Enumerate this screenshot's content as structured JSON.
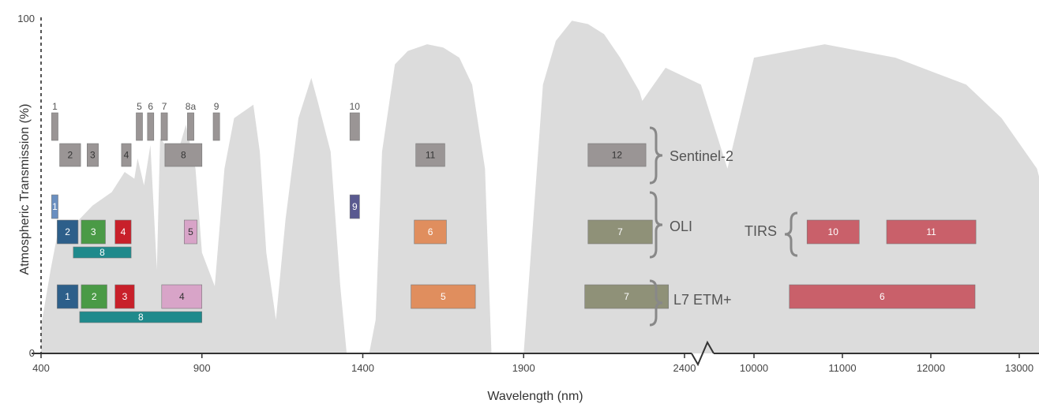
{
  "chart_data": {
    "type": "area",
    "title": "",
    "xlabel": "Wavelength (nm)",
    "ylabel": "Atmospheric Transmission (%)",
    "ylim": [
      0,
      100
    ],
    "y_ticks": [
      "0",
      "100"
    ],
    "x_ticks_nm": [
      "400",
      "900",
      "1400",
      "1900",
      "2400"
    ],
    "x_ticks_thermal": [
      "10000",
      "11000",
      "12000",
      "13000"
    ],
    "axis_break_between": [
      "2400",
      "10000"
    ],
    "colors": {
      "transmission": "#dcdcdc",
      "sentinel2": "#9a9595",
      "blue": "#2d5f8a",
      "green": "#4a9a46",
      "red": "#c8202a",
      "nir": "#d8a4c8",
      "pan": "#1f8a8c",
      "swir1": "#e08e5e",
      "swir2": "#8f9178",
      "cirrus": "#6f6fa0",
      "coastal": "#6a8fc0",
      "tirs": "#c9606a",
      "l8cirrus": "#5a5a90"
    },
    "transmission_series": [
      {
        "x": 400,
        "y": 8
      },
      {
        "x": 430,
        "y": 25
      },
      {
        "x": 450,
        "y": 35
      },
      {
        "x": 500,
        "y": 38
      },
      {
        "x": 560,
        "y": 44
      },
      {
        "x": 620,
        "y": 48
      },
      {
        "x": 660,
        "y": 54
      },
      {
        "x": 690,
        "y": 52
      },
      {
        "x": 700,
        "y": 58
      },
      {
        "x": 720,
        "y": 50
      },
      {
        "x": 740,
        "y": 62
      },
      {
        "x": 760,
        "y": 25
      },
      {
        "x": 770,
        "y": 64
      },
      {
        "x": 820,
        "y": 58
      },
      {
        "x": 850,
        "y": 68
      },
      {
        "x": 880,
        "y": 55
      },
      {
        "x": 900,
        "y": 30
      },
      {
        "x": 940,
        "y": 20
      },
      {
        "x": 970,
        "y": 55
      },
      {
        "x": 1000,
        "y": 70
      },
      {
        "x": 1030,
        "y": 72
      },
      {
        "x": 1060,
        "y": 74
      },
      {
        "x": 1080,
        "y": 60
      },
      {
        "x": 1100,
        "y": 30
      },
      {
        "x": 1130,
        "y": 10
      },
      {
        "x": 1160,
        "y": 40
      },
      {
        "x": 1200,
        "y": 70
      },
      {
        "x": 1240,
        "y": 82
      },
      {
        "x": 1260,
        "y": 75
      },
      {
        "x": 1300,
        "y": 60
      },
      {
        "x": 1330,
        "y": 20
      },
      {
        "x": 1350,
        "y": 0
      },
      {
        "x": 1370,
        "y": 0
      },
      {
        "x": 1400,
        "y": 0
      },
      {
        "x": 1420,
        "y": 0
      },
      {
        "x": 1440,
        "y": 10
      },
      {
        "x": 1460,
        "y": 60
      },
      {
        "x": 1500,
        "y": 86
      },
      {
        "x": 1540,
        "y": 90
      },
      {
        "x": 1600,
        "y": 92
      },
      {
        "x": 1650,
        "y": 91
      },
      {
        "x": 1700,
        "y": 88
      },
      {
        "x": 1740,
        "y": 80
      },
      {
        "x": 1780,
        "y": 55
      },
      {
        "x": 1800,
        "y": 0
      },
      {
        "x": 1860,
        "y": 0
      },
      {
        "x": 1900,
        "y": 0
      },
      {
        "x": 1930,
        "y": 40
      },
      {
        "x": 1960,
        "y": 80
      },
      {
        "x": 2000,
        "y": 93
      },
      {
        "x": 2050,
        "y": 99
      },
      {
        "x": 2100,
        "y": 98
      },
      {
        "x": 2150,
        "y": 95
      },
      {
        "x": 2200,
        "y": 88
      },
      {
        "x": 2260,
        "y": 78
      },
      {
        "x": 2300,
        "y": 65
      },
      {
        "x": 2340,
        "y": 40
      },
      {
        "x": 2380,
        "y": 20
      },
      {
        "x": 2400,
        "y": 0
      }
    ],
    "thermal_series": [
      {
        "x": 7900,
        "y": 0
      },
      {
        "x": 8200,
        "y": 50
      },
      {
        "x": 8600,
        "y": 70
      },
      {
        "x": 9000,
        "y": 85
      },
      {
        "x": 9400,
        "y": 80
      },
      {
        "x": 9700,
        "y": 55
      },
      {
        "x": 10000,
        "y": 88
      },
      {
        "x": 10400,
        "y": 90
      },
      {
        "x": 10800,
        "y": 92
      },
      {
        "x": 11200,
        "y": 90
      },
      {
        "x": 11600,
        "y": 88
      },
      {
        "x": 12000,
        "y": 84
      },
      {
        "x": 12400,
        "y": 80
      },
      {
        "x": 12800,
        "y": 70
      },
      {
        "x": 13200,
        "y": 55
      },
      {
        "x": 13300,
        "y": 45
      }
    ],
    "band_groups": [
      {
        "name": "Sentinel-2",
        "bands": [
          {
            "label": "1",
            "x0": 433,
            "x1": 453,
            "row": "s2-top",
            "color": "sentinel2"
          },
          {
            "label": "2",
            "x0": 458,
            "x1": 523,
            "row": "s2-main",
            "color": "sentinel2"
          },
          {
            "label": "3",
            "x0": 543,
            "x1": 578,
            "row": "s2-main",
            "color": "sentinel2"
          },
          {
            "label": "4",
            "x0": 650,
            "x1": 680,
            "row": "s2-main",
            "color": "sentinel2"
          },
          {
            "label": "5",
            "x0": 698,
            "x1": 713,
            "row": "s2-top",
            "color": "sentinel2"
          },
          {
            "label": "6",
            "x0": 733,
            "x1": 748,
            "row": "s2-top",
            "color": "sentinel2"
          },
          {
            "label": "7",
            "x0": 773,
            "x1": 793,
            "row": "s2-top",
            "color": "sentinel2"
          },
          {
            "label": "8",
            "x0": 785,
            "x1": 900,
            "row": "s2-main",
            "color": "sentinel2"
          },
          {
            "label": "8a",
            "x0": 855,
            "x1": 875,
            "row": "s2-top",
            "color": "sentinel2"
          },
          {
            "label": "9",
            "x0": 935,
            "x1": 955,
            "row": "s2-top",
            "color": "sentinel2"
          },
          {
            "label": "10",
            "x0": 1360,
            "x1": 1390,
            "row": "s2-top",
            "color": "sentinel2"
          },
          {
            "label": "11",
            "x0": 1565,
            "x1": 1655,
            "row": "s2-main",
            "color": "sentinel2"
          },
          {
            "label": "12",
            "x0": 2100,
            "x1": 2280,
            "row": "s2-main",
            "color": "sentinel2"
          }
        ]
      },
      {
        "name": "OLI",
        "bands": [
          {
            "label": "1",
            "x0": 433,
            "x1": 453,
            "row": "oli-top",
            "color": "coastal"
          },
          {
            "label": "2",
            "x0": 450,
            "x1": 515,
            "row": "oli-main",
            "color": "blue"
          },
          {
            "label": "3",
            "x0": 525,
            "x1": 600,
            "row": "oli-main",
            "color": "green"
          },
          {
            "label": "4",
            "x0": 630,
            "x1": 680,
            "row": "oli-main",
            "color": "red"
          },
          {
            "label": "5",
            "x0": 845,
            "x1": 885,
            "row": "oli-main",
            "color": "nir"
          },
          {
            "label": "6",
            "x0": 1560,
            "x1": 1660,
            "row": "oli-main",
            "color": "swir1"
          },
          {
            "label": "7",
            "x0": 2100,
            "x1": 2300,
            "row": "oli-main",
            "color": "swir2"
          },
          {
            "label": "8",
            "x0": 500,
            "x1": 680,
            "row": "oli-pan",
            "color": "pan"
          },
          {
            "label": "9",
            "x0": 1360,
            "x1": 1390,
            "row": "oli-top",
            "color": "l8cirrus"
          }
        ]
      },
      {
        "name": "TIRS",
        "bands": [
          {
            "label": "10",
            "x0": 10600,
            "x1": 11190,
            "row": "oli-main",
            "color": "tirs"
          },
          {
            "label": "11",
            "x0": 11500,
            "x1": 12510,
            "row": "oli-main",
            "color": "tirs"
          }
        ]
      },
      {
        "name": "L7 ETM+",
        "bands": [
          {
            "label": "1",
            "x0": 450,
            "x1": 515,
            "row": "etm-main",
            "color": "blue"
          },
          {
            "label": "2",
            "x0": 525,
            "x1": 605,
            "row": "etm-main",
            "color": "green"
          },
          {
            "label": "3",
            "x0": 630,
            "x1": 690,
            "row": "etm-main",
            "color": "red"
          },
          {
            "label": "4",
            "x0": 775,
            "x1": 900,
            "row": "etm-main",
            "color": "nir"
          },
          {
            "label": "5",
            "x0": 1550,
            "x1": 1750,
            "row": "etm-main",
            "color": "swir1"
          },
          {
            "label": "7",
            "x0": 2090,
            "x1": 2350,
            "row": "etm-main",
            "color": "swir2"
          },
          {
            "label": "8",
            "x0": 520,
            "x1": 900,
            "row": "etm-pan",
            "color": "pan"
          },
          {
            "label": "6",
            "x0": 10400,
            "x1": 12500,
            "row": "etm-main",
            "color": "tirs"
          }
        ]
      }
    ],
    "group_labels": [
      {
        "text": "Sentinel-2",
        "row": "s2"
      },
      {
        "text": "OLI",
        "row": "oli"
      },
      {
        "text": "TIRS",
        "row": "tirs"
      },
      {
        "text": "L7 ETM+",
        "row": "etm"
      }
    ]
  }
}
